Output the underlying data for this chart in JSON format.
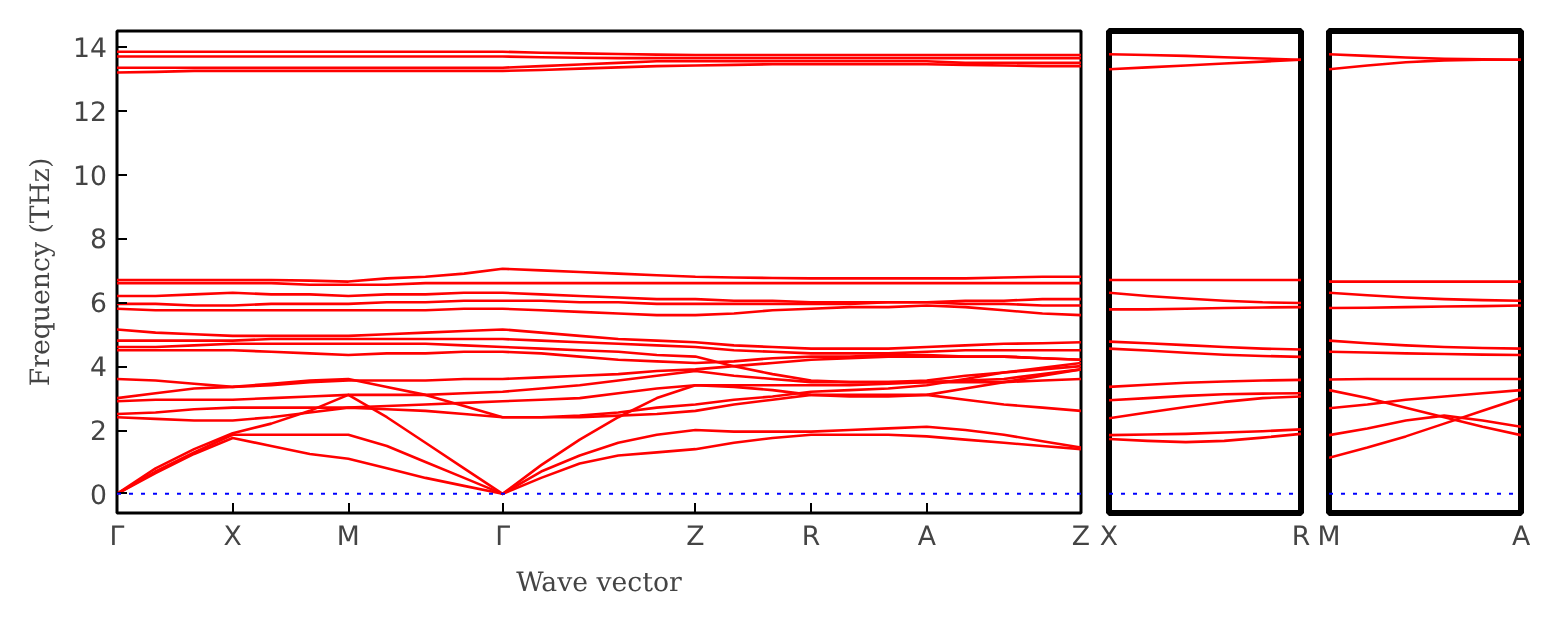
{
  "chart_data": [
    {
      "type": "line",
      "ylabel": "Frequency (THz)",
      "xlabel": "Wave vector",
      "categories": [
        "Γ",
        null,
        null,
        "X",
        null,
        null,
        "M",
        null,
        null,
        null,
        "Γ",
        null,
        null,
        null,
        null,
        "Z",
        null,
        null,
        "R",
        null,
        null,
        "A",
        null,
        null,
        null,
        "Z"
      ],
      "ylim": [
        -0.6,
        14.5
      ],
      "yticks": [
        0,
        2,
        4,
        6,
        8,
        10,
        12,
        14
      ],
      "grid": false,
      "line_style": "solid",
      "ref_lines": [
        {
          "axis": "y",
          "value": 0,
          "color": "#0000ff",
          "line_style": "dotted"
        }
      ],
      "series": [
        {
          "color": "#ff0000",
          "values": [
            0,
            0.65,
            1.25,
            1.75,
            1.5,
            1.25,
            1.1,
            0.8,
            0.5,
            0.25,
            0,
            0.5,
            0.95,
            1.2,
            1.3,
            1.4,
            1.6,
            1.75,
            1.85,
            1.85,
            1.85,
            1.8,
            1.7,
            1.6,
            1.5,
            1.4
          ]
        },
        {
          "color": "#ff0000",
          "values": [
            0,
            0.7,
            1.3,
            1.85,
            1.85,
            1.85,
            1.85,
            1.5,
            1.0,
            0.5,
            0,
            0.7,
            1.2,
            1.6,
            1.85,
            2.0,
            1.95,
            1.95,
            1.95,
            2.0,
            2.05,
            2.1,
            2.0,
            1.85,
            1.65,
            1.45
          ]
        },
        {
          "color": "#ff0000",
          "values": [
            0,
            0.8,
            1.4,
            1.9,
            2.2,
            2.6,
            3.1,
            2.4,
            1.6,
            0.8,
            0,
            0.9,
            1.7,
            2.4,
            3.0,
            3.4,
            3.35,
            3.25,
            3.1,
            3.05,
            3.05,
            3.1,
            3.3,
            3.5,
            3.7,
            3.9
          ]
        },
        {
          "color": "#ff0000",
          "values": [
            2.4,
            2.35,
            2.3,
            2.3,
            2.4,
            2.55,
            2.7,
            2.65,
            2.6,
            2.5,
            2.4,
            2.4,
            2.4,
            2.45,
            2.5,
            2.6,
            2.8,
            2.95,
            3.1,
            3.1,
            3.1,
            3.1,
            2.95,
            2.8,
            2.7,
            2.6
          ]
        },
        {
          "color": "#ff0000",
          "values": [
            2.5,
            2.55,
            2.65,
            2.7,
            2.7,
            2.7,
            2.7,
            2.75,
            2.8,
            2.85,
            2.9,
            2.95,
            3.0,
            3.15,
            3.3,
            3.4,
            3.4,
            3.4,
            3.4,
            3.4,
            3.45,
            3.5,
            3.5,
            3.5,
            3.55,
            3.6
          ]
        },
        {
          "color": "#ff0000",
          "values": [
            2.9,
            2.95,
            2.95,
            2.95,
            3.0,
            3.05,
            3.1,
            3.1,
            3.1,
            3.15,
            3.2,
            3.3,
            3.4,
            3.55,
            3.7,
            3.85,
            3.7,
            3.6,
            3.5,
            3.5,
            3.5,
            3.5,
            3.55,
            3.6,
            3.75,
            3.9
          ]
        },
        {
          "color": "#ff0000",
          "values": [
            3.6,
            3.55,
            3.45,
            3.35,
            3.4,
            3.5,
            3.55,
            3.55,
            3.55,
            3.6,
            3.6,
            3.65,
            3.7,
            3.75,
            3.85,
            3.9,
            4.0,
            4.1,
            4.2,
            4.25,
            4.3,
            4.3,
            4.3,
            4.3,
            4.25,
            4.2
          ]
        },
        {
          "color": "#ff0000",
          "values": [
            3.0,
            3.15,
            3.3,
            3.35,
            3.45,
            3.55,
            3.6,
            3.35,
            3.1,
            2.75,
            2.4,
            2.4,
            2.45,
            2.55,
            2.7,
            2.8,
            2.95,
            3.05,
            3.2,
            3.25,
            3.3,
            3.4,
            3.6,
            3.8,
            3.95,
            4.1
          ]
        },
        {
          "color": "#ff0000",
          "values": [
            4.5,
            4.5,
            4.5,
            4.5,
            4.45,
            4.4,
            4.35,
            4.4,
            4.4,
            4.45,
            4.45,
            4.4,
            4.3,
            4.2,
            4.15,
            4.1,
            4.15,
            4.25,
            4.3,
            4.3,
            4.35,
            4.35,
            4.3,
            4.3,
            4.25,
            4.2
          ]
        },
        {
          "color": "#ff0000",
          "values": [
            4.6,
            4.6,
            4.65,
            4.7,
            4.7,
            4.7,
            4.7,
            4.7,
            4.7,
            4.65,
            4.6,
            4.55,
            4.5,
            4.45,
            4.35,
            4.3,
            4.0,
            3.75,
            3.55,
            3.5,
            3.5,
            3.55,
            3.7,
            3.8,
            3.9,
            4.0
          ]
        },
        {
          "color": "#ff0000",
          "values": [
            4.8,
            4.8,
            4.8,
            4.8,
            4.85,
            4.85,
            4.85,
            4.85,
            4.85,
            4.85,
            4.85,
            4.8,
            4.75,
            4.7,
            4.65,
            4.6,
            4.5,
            4.45,
            4.4,
            4.4,
            4.4,
            4.45,
            4.5,
            4.5,
            4.5,
            4.5
          ]
        },
        {
          "color": "#ff0000",
          "values": [
            5.15,
            5.05,
            5.0,
            4.95,
            4.95,
            4.95,
            4.95,
            5.0,
            5.05,
            5.1,
            5.15,
            5.05,
            4.95,
            4.85,
            4.8,
            4.75,
            4.65,
            4.6,
            4.55,
            4.55,
            4.55,
            4.6,
            4.65,
            4.7,
            4.72,
            4.75
          ]
        },
        {
          "color": "#ff0000",
          "values": [
            5.8,
            5.75,
            5.75,
            5.75,
            5.75,
            5.75,
            5.75,
            5.75,
            5.75,
            5.8,
            5.8,
            5.75,
            5.7,
            5.65,
            5.6,
            5.6,
            5.65,
            5.75,
            5.8,
            5.85,
            5.85,
            5.9,
            5.85,
            5.75,
            5.65,
            5.6
          ]
        },
        {
          "color": "#ff0000",
          "values": [
            5.95,
            5.95,
            5.9,
            5.9,
            5.95,
            5.95,
            5.95,
            6.0,
            6.0,
            6.05,
            6.05,
            6.05,
            6.0,
            6.0,
            5.95,
            5.95,
            5.95,
            5.95,
            5.95,
            5.95,
            6.0,
            6.0,
            5.95,
            5.95,
            5.9,
            5.9
          ]
        },
        {
          "color": "#ff0000",
          "values": [
            6.2,
            6.2,
            6.25,
            6.3,
            6.25,
            6.25,
            6.2,
            6.25,
            6.25,
            6.3,
            6.3,
            6.25,
            6.2,
            6.15,
            6.1,
            6.1,
            6.05,
            6.05,
            6.0,
            6.0,
            6.0,
            6.0,
            6.05,
            6.05,
            6.1,
            6.1
          ]
        },
        {
          "color": "#ff0000",
          "values": [
            6.6,
            6.6,
            6.6,
            6.6,
            6.6,
            6.55,
            6.55,
            6.55,
            6.6,
            6.6,
            6.6,
            6.6,
            6.6,
            6.6,
            6.6,
            6.6,
            6.6,
            6.6,
            6.6,
            6.6,
            6.6,
            6.6,
            6.6,
            6.6,
            6.6,
            6.6
          ]
        },
        {
          "color": "#ff0000",
          "values": [
            6.7,
            6.7,
            6.7,
            6.7,
            6.7,
            6.68,
            6.65,
            6.75,
            6.8,
            6.9,
            7.05,
            7.0,
            6.95,
            6.9,
            6.85,
            6.8,
            6.78,
            6.76,
            6.75,
            6.75,
            6.75,
            6.75,
            6.75,
            6.78,
            6.8,
            6.8
          ]
        },
        {
          "color": "#ff0000",
          "values": [
            13.85,
            13.85,
            13.85,
            13.85,
            13.85,
            13.85,
            13.85,
            13.85,
            13.85,
            13.85,
            13.85,
            13.82,
            13.8,
            13.78,
            13.76,
            13.75,
            13.75,
            13.75,
            13.75,
            13.75,
            13.75,
            13.75,
            13.75,
            13.75,
            13.75,
            13.75
          ]
        },
        {
          "color": "#ff0000",
          "values": [
            13.7,
            13.7,
            13.7,
            13.7,
            13.7,
            13.7,
            13.7,
            13.7,
            13.7,
            13.7,
            13.7,
            13.68,
            13.66,
            13.65,
            13.65,
            13.65,
            13.65,
            13.65,
            13.65,
            13.65,
            13.65,
            13.65,
            13.65,
            13.65,
            13.65,
            13.65
          ]
        },
        {
          "color": "#ff0000",
          "values": [
            13.35,
            13.35,
            13.35,
            13.35,
            13.35,
            13.35,
            13.35,
            13.35,
            13.35,
            13.35,
            13.35,
            13.4,
            13.45,
            13.5,
            13.55,
            13.55,
            13.55,
            13.55,
            13.55,
            13.55,
            13.55,
            13.55,
            13.5,
            13.5,
            13.5,
            13.5
          ]
        },
        {
          "color": "#ff0000",
          "values": [
            13.2,
            13.22,
            13.25,
            13.25,
            13.25,
            13.25,
            13.25,
            13.25,
            13.25,
            13.25,
            13.25,
            13.28,
            13.32,
            13.36,
            13.4,
            13.42,
            13.44,
            13.46,
            13.46,
            13.46,
            13.46,
            13.46,
            13.44,
            13.42,
            13.4,
            13.4
          ]
        }
      ]
    },
    {
      "type": "line",
      "categories": [
        "X",
        null,
        null,
        null,
        null,
        "R"
      ],
      "ylim": [
        -0.6,
        14.5
      ],
      "yticks": [
        0,
        2,
        4,
        6,
        8,
        10,
        12,
        14
      ],
      "tick_labels": "x",
      "grid": false,
      "line_style": "solid",
      "ref_lines": [
        {
          "axis": "y",
          "value": 0,
          "color": "#0000ff",
          "line_style": "dotted"
        }
      ],
      "series": [
        {
          "color": "#ff0000",
          "values": [
            13.77,
            13.75,
            13.72,
            13.68,
            13.64,
            13.6
          ]
        },
        {
          "color": "#ff0000",
          "values": [
            13.3,
            13.36,
            13.42,
            13.48,
            13.54,
            13.6
          ]
        },
        {
          "color": "#ff0000",
          "values": [
            6.7,
            6.7,
            6.7,
            6.7,
            6.7,
            6.7
          ]
        },
        {
          "color": "#ff0000",
          "values": [
            6.3,
            6.2,
            6.12,
            6.05,
            6.0,
            5.98
          ]
        },
        {
          "color": "#ff0000",
          "values": [
            5.78,
            5.78,
            5.8,
            5.82,
            5.84,
            5.85
          ]
        },
        {
          "color": "#ff0000",
          "values": [
            4.77,
            4.72,
            4.66,
            4.6,
            4.55,
            4.52
          ]
        },
        {
          "color": "#ff0000",
          "values": [
            4.55,
            4.49,
            4.42,
            4.36,
            4.32,
            4.29
          ]
        },
        {
          "color": "#ff0000",
          "values": [
            3.35,
            3.42,
            3.48,
            3.52,
            3.55,
            3.57
          ]
        },
        {
          "color": "#ff0000",
          "values": [
            2.93,
            3.0,
            3.07,
            3.12,
            3.14,
            3.15
          ]
        },
        {
          "color": "#ff0000",
          "values": [
            2.37,
            2.55,
            2.72,
            2.88,
            3.0,
            3.05
          ]
        },
        {
          "color": "#ff0000",
          "values": [
            1.84,
            1.86,
            1.88,
            1.92,
            1.96,
            2.02
          ]
        },
        {
          "color": "#ff0000",
          "values": [
            1.72,
            1.66,
            1.62,
            1.66,
            1.76,
            1.88
          ]
        }
      ]
    },
    {
      "type": "line",
      "categories": [
        "M",
        null,
        null,
        null,
        null,
        "A"
      ],
      "ylim": [
        -0.6,
        14.5
      ],
      "yticks": [
        0,
        2,
        4,
        6,
        8,
        10,
        12,
        14
      ],
      "tick_labels": "x",
      "grid": false,
      "line_style": "solid",
      "ref_lines": [
        {
          "axis": "y",
          "value": 0,
          "color": "#0000ff",
          "line_style": "dotted"
        }
      ],
      "series": [
        {
          "color": "#ff0000",
          "values": [
            13.77,
            13.72,
            13.67,
            13.63,
            13.61,
            13.6
          ]
        },
        {
          "color": "#ff0000",
          "values": [
            13.3,
            13.42,
            13.52,
            13.58,
            13.6,
            13.6
          ]
        },
        {
          "color": "#ff0000",
          "values": [
            6.65,
            6.65,
            6.65,
            6.65,
            6.65,
            6.65
          ]
        },
        {
          "color": "#ff0000",
          "values": [
            6.3,
            6.22,
            6.15,
            6.1,
            6.07,
            6.05
          ]
        },
        {
          "color": "#ff0000",
          "values": [
            5.82,
            5.83,
            5.85,
            5.87,
            5.88,
            5.9
          ]
        },
        {
          "color": "#ff0000",
          "values": [
            4.8,
            4.72,
            4.65,
            4.6,
            4.57,
            4.55
          ]
        },
        {
          "color": "#ff0000",
          "values": [
            4.45,
            4.43,
            4.4,
            4.38,
            4.36,
            4.35
          ]
        },
        {
          "color": "#ff0000",
          "values": [
            3.58,
            3.6,
            3.6,
            3.6,
            3.6,
            3.6
          ]
        },
        {
          "color": "#ff0000",
          "values": [
            3.25,
            3.0,
            2.7,
            2.4,
            2.1,
            1.84
          ]
        },
        {
          "color": "#ff0000",
          "values": [
            2.68,
            2.8,
            2.95,
            3.05,
            3.15,
            3.25
          ]
        },
        {
          "color": "#ff0000",
          "values": [
            1.84,
            2.05,
            2.3,
            2.45,
            2.3,
            2.1
          ]
        },
        {
          "color": "#ff0000",
          "values": [
            1.13,
            1.45,
            1.8,
            2.2,
            2.6,
            3.0
          ]
        }
      ]
    }
  ]
}
